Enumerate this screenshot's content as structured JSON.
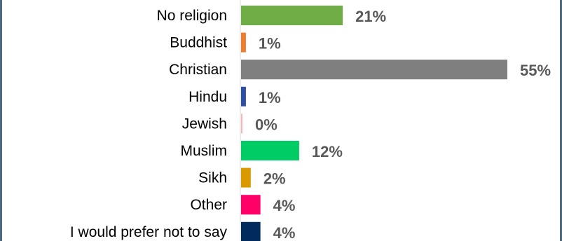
{
  "chart_data": {
    "type": "bar",
    "orientation": "horizontal",
    "categories": [
      "No religion",
      "Buddhist",
      "Christian",
      "Hindu",
      "Jewish",
      "Muslim",
      "Sikh",
      "Other",
      "I would prefer not to say"
    ],
    "values": [
      21,
      1,
      55,
      1,
      0,
      12,
      2,
      4,
      4
    ],
    "value_labels": [
      "21%",
      "1%",
      "55%",
      "1%",
      "0%",
      "12%",
      "2%",
      "4%",
      "4%"
    ],
    "colors": [
      "#70ad47",
      "#ed7d31",
      "#7f7f7f",
      "#2e4fa3",
      "#f4b8b8",
      "#00cc66",
      "#d99a00",
      "#ff0066",
      "#002b5c"
    ],
    "xlim": [
      0,
      55
    ],
    "grid": false,
    "legend": "none"
  }
}
